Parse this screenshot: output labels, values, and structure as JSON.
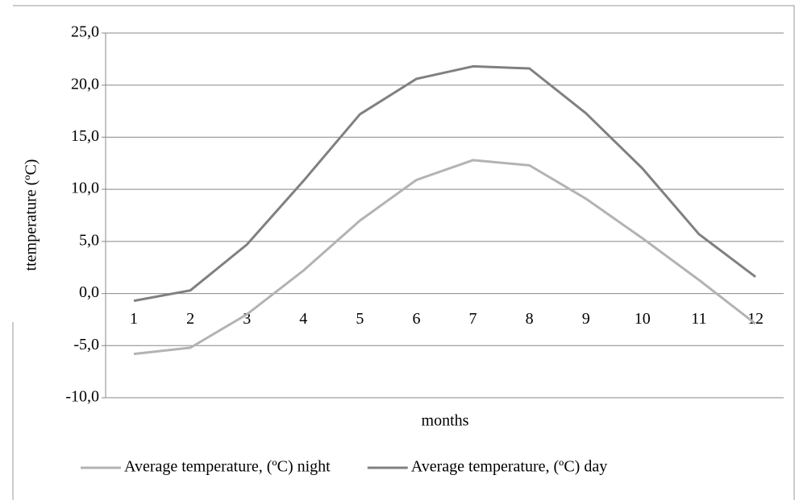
{
  "chart_data": {
    "type": "line",
    "x_label": "months",
    "y_label": "ttemperature (ºC)",
    "categories": [
      "1",
      "2",
      "3",
      "4",
      "5",
      "6",
      "7",
      "8",
      "9",
      "10",
      "11",
      "12"
    ],
    "series": [
      {
        "name": "Average temperature, (ºC) night",
        "color": "#b3b3b3",
        "values": [
          -5.8,
          -5.2,
          -2.0,
          2.2,
          7.0,
          10.9,
          12.8,
          12.3,
          9.1,
          5.3,
          1.3,
          -2.9
        ]
      },
      {
        "name": "Average temperature, (ºC) day",
        "color": "#808080",
        "values": [
          -0.7,
          0.3,
          4.7,
          10.8,
          17.2,
          20.6,
          21.8,
          21.6,
          17.3,
          12.0,
          5.7,
          1.6
        ]
      }
    ],
    "ylim": [
      -10,
      25
    ],
    "yticks": [
      {
        "value": -10,
        "label": "-10,0"
      },
      {
        "value": -5,
        "label": "-5,0"
      },
      {
        "value": 0,
        "label": "0,0"
      },
      {
        "value": 5,
        "label": "5,0"
      },
      {
        "value": 10,
        "label": "10,0"
      },
      {
        "value": 15,
        "label": "15,0"
      },
      {
        "value": 20,
        "label": "20,0"
      },
      {
        "value": 25,
        "label": "25,0"
      }
    ],
    "grid": true,
    "legend": "bottom"
  }
}
